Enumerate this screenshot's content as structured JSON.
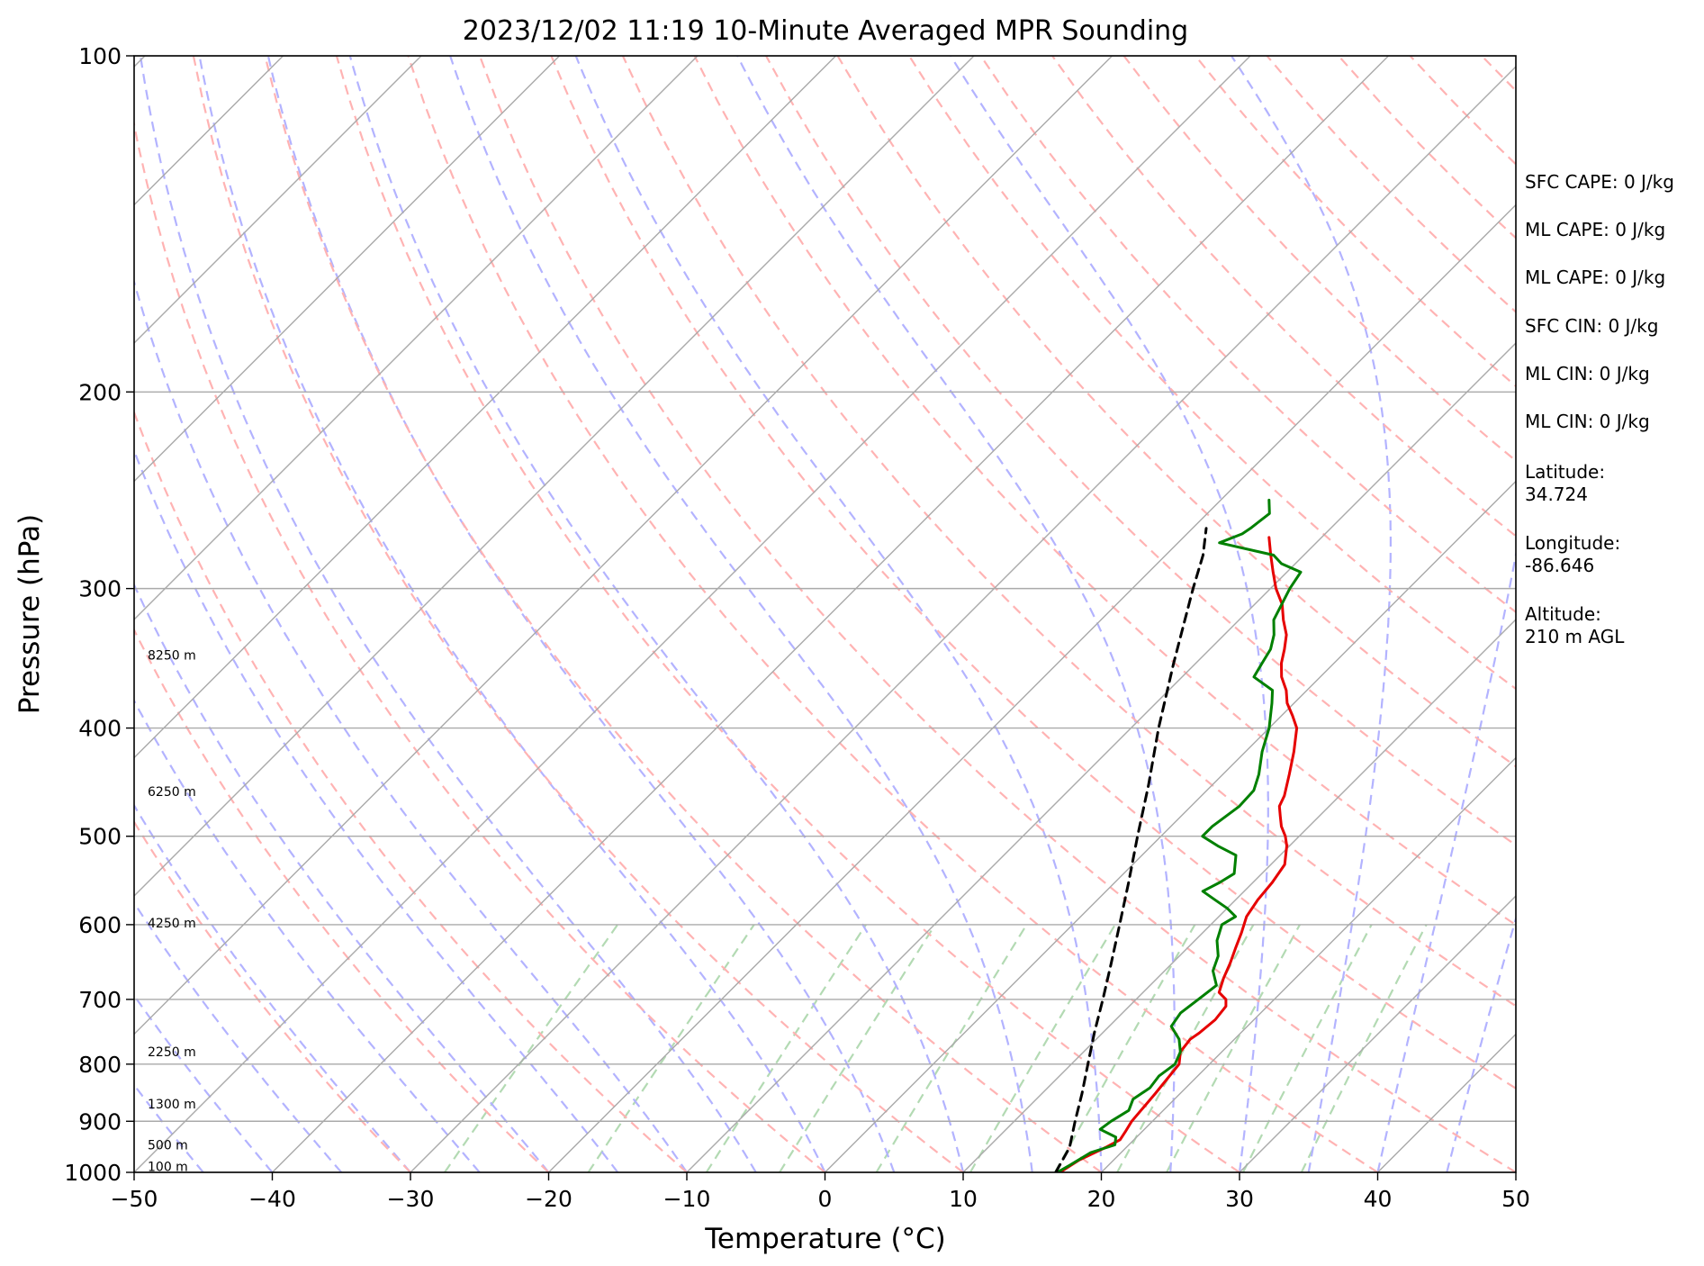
{
  "chart_data": {
    "type": "line",
    "subtype": "skew-t log-p sounding",
    "title": "2023/12/02 11:19 10-Minute Averaged MPR Sounding",
    "xlabel": "Temperature (°C)",
    "ylabel": "Pressure (hPa)",
    "xlim": [
      -50,
      50
    ],
    "ylim": [
      1000,
      100
    ],
    "yscale": "log",
    "x_ticks": [
      -50,
      -40,
      -30,
      -20,
      -10,
      0,
      10,
      20,
      30,
      40,
      50
    ],
    "y_ticks": [
      100,
      200,
      300,
      400,
      500,
      600,
      700,
      800,
      900,
      1000
    ],
    "x_tick_labels": [
      "−50",
      "−40",
      "−30",
      "−20",
      "−10",
      "0",
      "10",
      "20",
      "30",
      "40",
      "50"
    ],
    "y_tick_labels": [
      "100",
      "200",
      "300",
      "400",
      "500",
      "600",
      "700",
      "800",
      "900",
      "1000"
    ],
    "grid": "horizontal isobars",
    "background_lines": {
      "isotherms_color": "#aaaaaa",
      "dry_adiabats_color": "#ffb3b3",
      "moist_adiabats_color": "#b3b3ff",
      "mixing_ratio_color": "#b3dab3"
    },
    "height_labels": [
      {
        "text": "100 m",
        "pressure": 988
      },
      {
        "text": "500 m",
        "pressure": 945
      },
      {
        "text": "1300 m",
        "pressure": 868
      },
      {
        "text": "2250 m",
        "pressure": 780
      },
      {
        "text": "4250 m",
        "pressure": 598
      },
      {
        "text": "6250 m",
        "pressure": 456
      },
      {
        "text": "8250 m",
        "pressure": 344
      }
    ],
    "series": [
      {
        "color": "#e60000",
        "points": [
          [
            1000,
            17.0
          ],
          [
            975,
            17.5
          ],
          [
            950,
            18.5
          ],
          [
            935,
            19.0
          ],
          [
            920,
            18.8
          ],
          [
            900,
            18.5
          ],
          [
            850,
            18.2
          ],
          [
            800,
            17.8
          ],
          [
            780,
            17.0
          ],
          [
            760,
            16.8
          ],
          [
            750,
            17.0
          ],
          [
            730,
            17.2
          ],
          [
            710,
            17.0
          ],
          [
            700,
            16.5
          ],
          [
            690,
            15.5
          ],
          [
            670,
            14.8
          ],
          [
            650,
            14.2
          ],
          [
            630,
            13.5
          ],
          [
            610,
            12.8
          ],
          [
            590,
            12.0
          ],
          [
            570,
            11.6
          ],
          [
            550,
            11.4
          ],
          [
            530,
            11.0
          ],
          [
            510,
            9.8
          ],
          [
            500,
            9.0
          ],
          [
            490,
            8.0
          ],
          [
            480,
            7.2
          ],
          [
            470,
            6.4
          ],
          [
            460,
            6.0
          ],
          [
            440,
            4.8
          ],
          [
            420,
            3.5
          ],
          [
            400,
            2.0
          ],
          [
            390,
            0.8
          ],
          [
            380,
            -0.5
          ],
          [
            370,
            -1.5
          ],
          [
            360,
            -2.8
          ],
          [
            350,
            -3.8
          ],
          [
            340,
            -4.6
          ],
          [
            330,
            -5.5
          ],
          [
            320,
            -6.8
          ],
          [
            310,
            -8.0
          ],
          [
            300,
            -9.6
          ],
          [
            290,
            -11.0
          ],
          [
            280,
            -12.4
          ],
          [
            270,
            -13.8
          ]
        ]
      },
      {
        "color": "#008000",
        "points": [
          [
            1000,
            16.8
          ],
          [
            985,
            17.2
          ],
          [
            960,
            17.8
          ],
          [
            945,
            19.0
          ],
          [
            930,
            18.5
          ],
          [
            915,
            16.8
          ],
          [
            900,
            17.0
          ],
          [
            880,
            17.5
          ],
          [
            860,
            17.0
          ],
          [
            840,
            17.4
          ],
          [
            820,
            17.2
          ],
          [
            800,
            17.5
          ],
          [
            780,
            17.0
          ],
          [
            760,
            16.0
          ],
          [
            740,
            14.5
          ],
          [
            720,
            14.2
          ],
          [
            700,
            14.5
          ],
          [
            680,
            14.8
          ],
          [
            660,
            13.5
          ],
          [
            640,
            12.8
          ],
          [
            620,
            11.6
          ],
          [
            600,
            10.8
          ],
          [
            590,
            11.2
          ],
          [
            580,
            10.0
          ],
          [
            570,
            8.5
          ],
          [
            560,
            7.0
          ],
          [
            550,
            7.6
          ],
          [
            540,
            8.0
          ],
          [
            520,
            6.8
          ],
          [
            510,
            4.8
          ],
          [
            500,
            3.0
          ],
          [
            490,
            3.0
          ],
          [
            470,
            3.5
          ],
          [
            455,
            3.4
          ],
          [
            440,
            2.6
          ],
          [
            420,
            1.2
          ],
          [
            400,
            0.0
          ],
          [
            380,
            -1.6
          ],
          [
            370,
            -2.5
          ],
          [
            360,
            -4.8
          ],
          [
            350,
            -5.2
          ],
          [
            340,
            -5.6
          ],
          [
            330,
            -6.4
          ],
          [
            320,
            -7.5
          ],
          [
            300,
            -8.6
          ],
          [
            290,
            -9.0
          ],
          [
            285,
            -11.0
          ],
          [
            280,
            -12.2
          ],
          [
            273,
            -17.0
          ],
          [
            268,
            -16.0
          ],
          [
            265,
            -15.8
          ],
          [
            257,
            -15.5
          ],
          [
            250,
            -16.5
          ]
        ]
      },
      {
        "color": "#000000",
        "dashed": true,
        "points": [
          [
            1000,
            16.7
          ],
          [
            950,
            15.9
          ],
          [
            900,
            14.4
          ],
          [
            850,
            12.9
          ],
          [
            800,
            11.2
          ],
          [
            750,
            9.4
          ],
          [
            700,
            7.6
          ],
          [
            650,
            5.6
          ],
          [
            600,
            3.4
          ],
          [
            550,
            1.0
          ],
          [
            500,
            -1.7
          ],
          [
            450,
            -4.6
          ],
          [
            400,
            -8.0
          ],
          [
            350,
            -11.6
          ],
          [
            300,
            -15.6
          ],
          [
            280,
            -17.3
          ],
          [
            265,
            -19.0
          ]
        ]
      }
    ]
  },
  "side_panel": [
    {
      "id": "sfc-cape",
      "text": "SFC CAPE: 0 J/kg"
    },
    {
      "id": "ml-cape-1",
      "text": "ML CAPE: 0 J/kg"
    },
    {
      "id": "ml-cape-2",
      "text": "ML CAPE: 0 J/kg"
    },
    {
      "id": "sfc-cin",
      "text": "SFC CIN: 0 J/kg"
    },
    {
      "id": "ml-cin-1",
      "text": "ML CIN: 0 J/kg"
    },
    {
      "id": "ml-cin-2",
      "text": "ML CIN: 0 J/kg"
    },
    {
      "id": "latitude",
      "text": "Latitude:\n34.724"
    },
    {
      "id": "longitude",
      "text": "Longitude:\n-86.646"
    },
    {
      "id": "altitude",
      "text": "Altitude:\n210 m AGL"
    }
  ]
}
